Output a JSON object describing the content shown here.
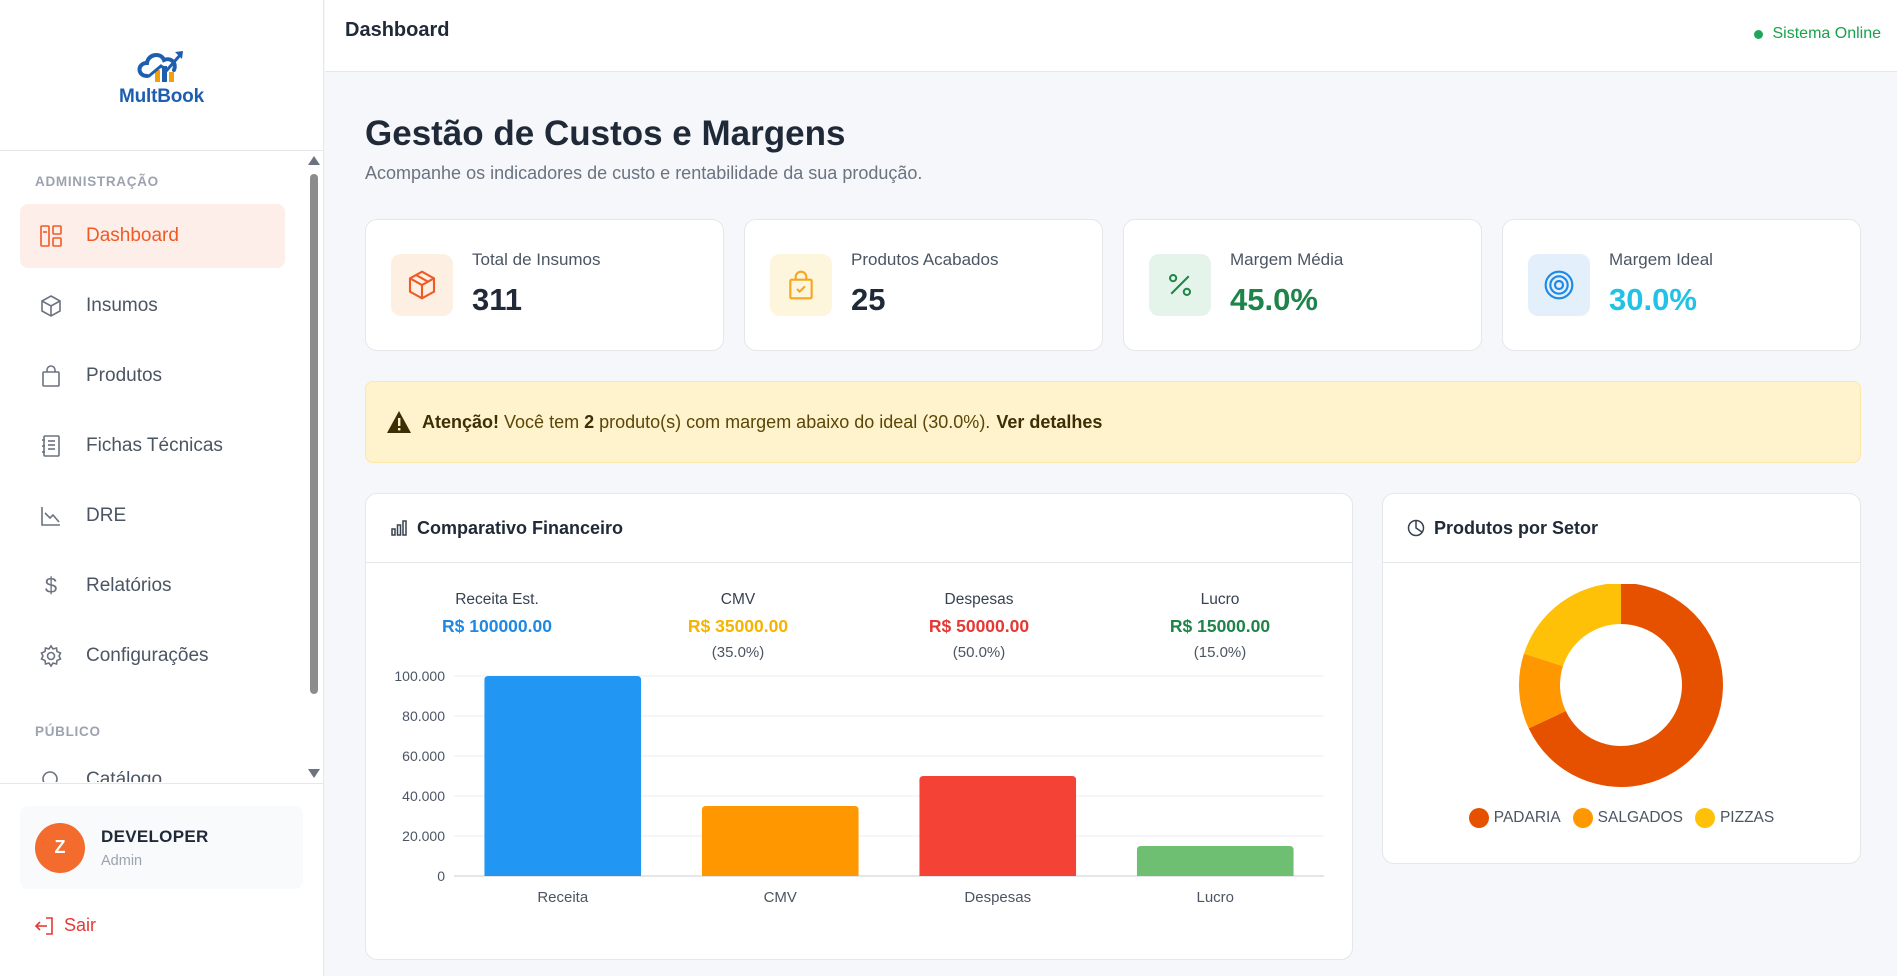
{
  "app": {
    "name": "MultBook"
  },
  "sidebar": {
    "section_admin": "ADMINISTRAÇÃO",
    "section_public": "PÚBLICO",
    "items": [
      {
        "label": "Dashboard",
        "icon": "dashboard-icon",
        "active": true
      },
      {
        "label": "Insumos",
        "icon": "box-icon"
      },
      {
        "label": "Produtos",
        "icon": "bag-icon"
      },
      {
        "label": "Fichas Técnicas",
        "icon": "document-icon"
      },
      {
        "label": "DRE",
        "icon": "chart-line-icon"
      },
      {
        "label": "Relatórios",
        "icon": "dollar-icon"
      },
      {
        "label": "Configurações",
        "icon": "gear-icon"
      },
      {
        "label": "Catálogo",
        "icon": "search-icon"
      }
    ],
    "user": {
      "initial": "Z",
      "name": "DEVELOPER",
      "role": "Admin"
    },
    "logout_label": "Sair"
  },
  "header": {
    "title": "Dashboard",
    "status": "Sistema Online"
  },
  "page": {
    "title": "Gestão de Custos e Margens",
    "subtitle": "Acompanhe os indicadores de custo e rentabilidade da sua produção."
  },
  "stats": [
    {
      "label": "Total de Insumos",
      "value": "311",
      "color": "#1f2937"
    },
    {
      "label": "Produtos Acabados",
      "value": "25",
      "color": "#1f2937"
    },
    {
      "label": "Margem Média",
      "value": "45.0%",
      "color": "#1e8449"
    },
    {
      "label": "Margem Ideal",
      "value": "30.0%",
      "color": "#22c1e6"
    }
  ],
  "alert": {
    "strong": "Atenção!",
    "text_pre": "Você tem",
    "count": "2",
    "text_post": "produto(s) com margem abaixo do ideal (30.0%).",
    "link": "Ver detalhes"
  },
  "financial": {
    "title": "Comparativo Financeiro",
    "summary": [
      {
        "label": "Receita Est.",
        "value": "R$ 100000.00",
        "pct": "",
        "color": "#1e88e5"
      },
      {
        "label": "CMV",
        "value": "R$ 35000.00",
        "pct": "(35.0%)",
        "color": "#f4b400"
      },
      {
        "label": "Despesas",
        "value": "R$ 50000.00",
        "pct": "(50.0%)",
        "color": "#e53935"
      },
      {
        "label": "Lucro",
        "value": "R$ 15000.00",
        "pct": "(15.0%)",
        "color": "#1e8449"
      }
    ]
  },
  "sector": {
    "title": "Produtos por Setor"
  },
  "chart_data": [
    {
      "type": "bar",
      "categories": [
        "Receita",
        "CMV",
        "Despesas",
        "Lucro"
      ],
      "values": [
        100000,
        35000,
        50000,
        15000
      ],
      "colors": [
        "#2196f3",
        "#ff9800",
        "#f44336",
        "#6fbf73"
      ],
      "ylim": [
        0,
        100000
      ],
      "yticks": [
        "0",
        "20.000",
        "40.000",
        "60.000",
        "80.000",
        "100.000"
      ],
      "grid": true
    },
    {
      "type": "pie",
      "labels": [
        "PADARIA",
        "SALGADOS",
        "PIZZAS"
      ],
      "values": [
        17,
        3,
        5
      ],
      "colors": [
        "#e65100",
        "#ff9800",
        "#ffc107"
      ],
      "legend": "bottom"
    }
  ]
}
